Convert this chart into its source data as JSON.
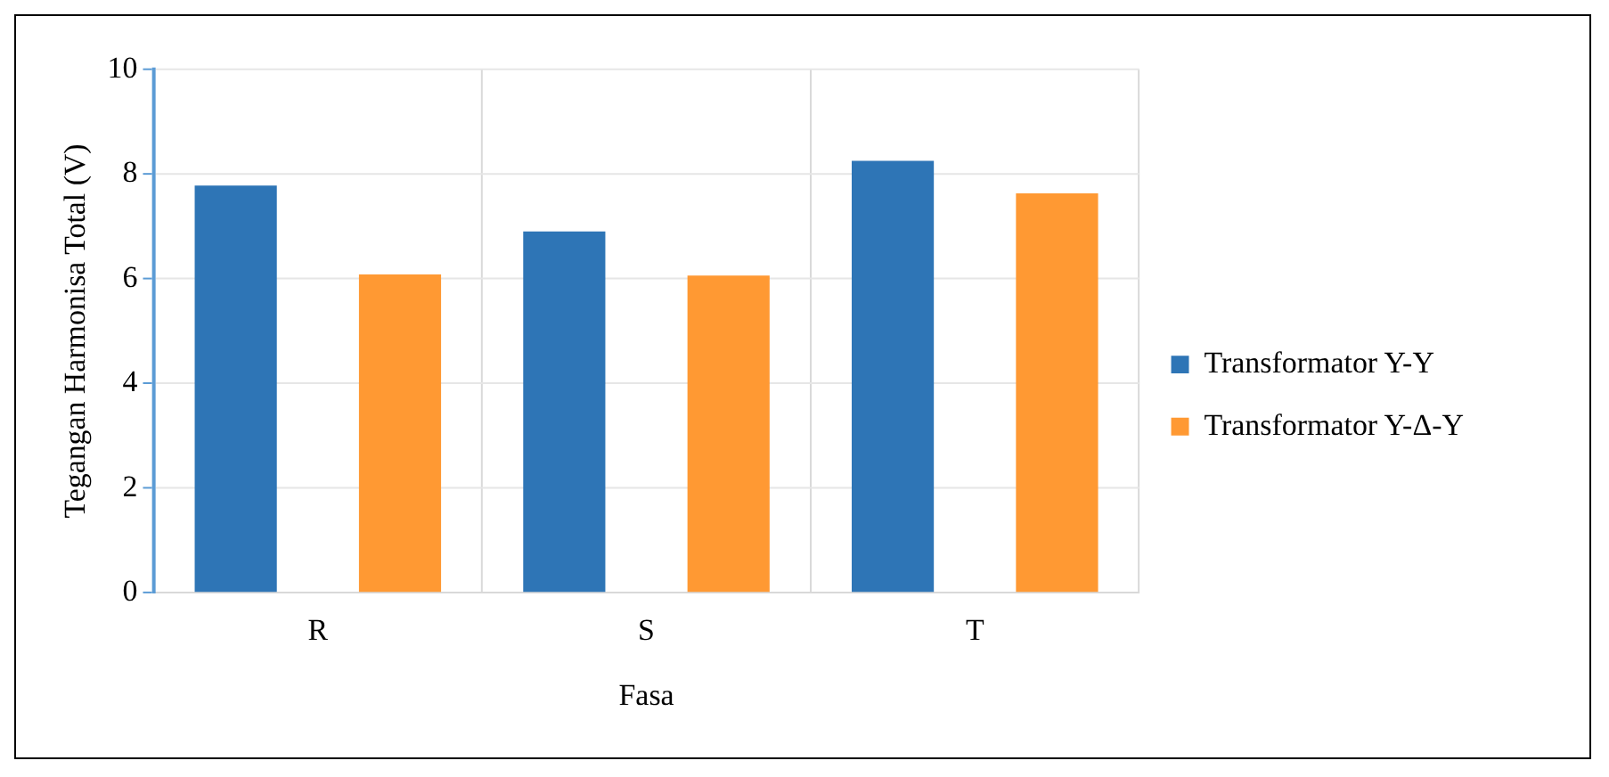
{
  "chart_data": {
    "type": "bar",
    "xlabel": "Fasa",
    "ylabel": "Tegangan Harmonisa Total (V)",
    "categories": [
      "R",
      "S",
      "T"
    ],
    "series": [
      {
        "name": "Transformator Y-Y",
        "color": "#2e75b6",
        "values": [
          7.78,
          6.9,
          8.25
        ]
      },
      {
        "name": "Transformator Y-Δ-Y",
        "color": "#ff9933",
        "values": [
          6.08,
          6.06,
          7.63
        ]
      }
    ],
    "ylim": [
      0,
      10
    ],
    "yticks": [
      0,
      2,
      4,
      6,
      8,
      10
    ],
    "grid": true,
    "legend": "right"
  }
}
